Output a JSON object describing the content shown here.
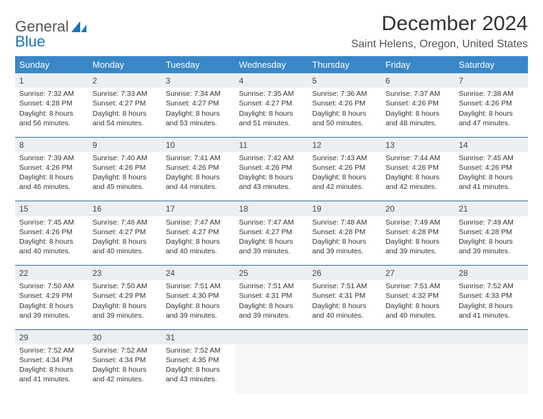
{
  "logo": {
    "word1": "General",
    "word2": "Blue"
  },
  "title": {
    "month": "December 2024",
    "location": "Saint Helens, Oregon, United States"
  },
  "colors": {
    "header_bg": "#3a87c7",
    "header_fg": "#ffffff",
    "daynum_bg": "#eceff1",
    "row_border": "#2f6da3",
    "text": "#333333"
  },
  "day_headers": [
    "Sunday",
    "Monday",
    "Tuesday",
    "Wednesday",
    "Thursday",
    "Friday",
    "Saturday"
  ],
  "weeks": [
    [
      {
        "n": "1",
        "sr": "7:32 AM",
        "ss": "4:28 PM",
        "dl": "8 hours and 56 minutes."
      },
      {
        "n": "2",
        "sr": "7:33 AM",
        "ss": "4:27 PM",
        "dl": "8 hours and 54 minutes."
      },
      {
        "n": "3",
        "sr": "7:34 AM",
        "ss": "4:27 PM",
        "dl": "8 hours and 53 minutes."
      },
      {
        "n": "4",
        "sr": "7:35 AM",
        "ss": "4:27 PM",
        "dl": "8 hours and 51 minutes."
      },
      {
        "n": "5",
        "sr": "7:36 AM",
        "ss": "4:26 PM",
        "dl": "8 hours and 50 minutes."
      },
      {
        "n": "6",
        "sr": "7:37 AM",
        "ss": "4:26 PM",
        "dl": "8 hours and 48 minutes."
      },
      {
        "n": "7",
        "sr": "7:38 AM",
        "ss": "4:26 PM",
        "dl": "8 hours and 47 minutes."
      }
    ],
    [
      {
        "n": "8",
        "sr": "7:39 AM",
        "ss": "4:26 PM",
        "dl": "8 hours and 46 minutes."
      },
      {
        "n": "9",
        "sr": "7:40 AM",
        "ss": "4:26 PM",
        "dl": "8 hours and 45 minutes."
      },
      {
        "n": "10",
        "sr": "7:41 AM",
        "ss": "4:26 PM",
        "dl": "8 hours and 44 minutes."
      },
      {
        "n": "11",
        "sr": "7:42 AM",
        "ss": "4:26 PM",
        "dl": "8 hours and 43 minutes."
      },
      {
        "n": "12",
        "sr": "7:43 AM",
        "ss": "4:26 PM",
        "dl": "8 hours and 42 minutes."
      },
      {
        "n": "13",
        "sr": "7:44 AM",
        "ss": "4:26 PM",
        "dl": "8 hours and 42 minutes."
      },
      {
        "n": "14",
        "sr": "7:45 AM",
        "ss": "4:26 PM",
        "dl": "8 hours and 41 minutes."
      }
    ],
    [
      {
        "n": "15",
        "sr": "7:45 AM",
        "ss": "4:26 PM",
        "dl": "8 hours and 40 minutes."
      },
      {
        "n": "16",
        "sr": "7:46 AM",
        "ss": "4:27 PM",
        "dl": "8 hours and 40 minutes."
      },
      {
        "n": "17",
        "sr": "7:47 AM",
        "ss": "4:27 PM",
        "dl": "8 hours and 40 minutes."
      },
      {
        "n": "18",
        "sr": "7:47 AM",
        "ss": "4:27 PM",
        "dl": "8 hours and 39 minutes."
      },
      {
        "n": "19",
        "sr": "7:48 AM",
        "ss": "4:28 PM",
        "dl": "8 hours and 39 minutes."
      },
      {
        "n": "20",
        "sr": "7:49 AM",
        "ss": "4:28 PM",
        "dl": "8 hours and 39 minutes."
      },
      {
        "n": "21",
        "sr": "7:49 AM",
        "ss": "4:28 PM",
        "dl": "8 hours and 39 minutes."
      }
    ],
    [
      {
        "n": "22",
        "sr": "7:50 AM",
        "ss": "4:29 PM",
        "dl": "8 hours and 39 minutes."
      },
      {
        "n": "23",
        "sr": "7:50 AM",
        "ss": "4:29 PM",
        "dl": "8 hours and 39 minutes."
      },
      {
        "n": "24",
        "sr": "7:51 AM",
        "ss": "4:30 PM",
        "dl": "8 hours and 39 minutes."
      },
      {
        "n": "25",
        "sr": "7:51 AM",
        "ss": "4:31 PM",
        "dl": "8 hours and 39 minutes."
      },
      {
        "n": "26",
        "sr": "7:51 AM",
        "ss": "4:31 PM",
        "dl": "8 hours and 40 minutes."
      },
      {
        "n": "27",
        "sr": "7:51 AM",
        "ss": "4:32 PM",
        "dl": "8 hours and 40 minutes."
      },
      {
        "n": "28",
        "sr": "7:52 AM",
        "ss": "4:33 PM",
        "dl": "8 hours and 41 minutes."
      }
    ],
    [
      {
        "n": "29",
        "sr": "7:52 AM",
        "ss": "4:34 PM",
        "dl": "8 hours and 41 minutes."
      },
      {
        "n": "30",
        "sr": "7:52 AM",
        "ss": "4:34 PM",
        "dl": "8 hours and 42 minutes."
      },
      {
        "n": "31",
        "sr": "7:52 AM",
        "ss": "4:35 PM",
        "dl": "8 hours and 43 minutes."
      },
      null,
      null,
      null,
      null
    ]
  ],
  "labels": {
    "sunrise": "Sunrise:",
    "sunset": "Sunset:",
    "daylight": "Daylight:"
  }
}
